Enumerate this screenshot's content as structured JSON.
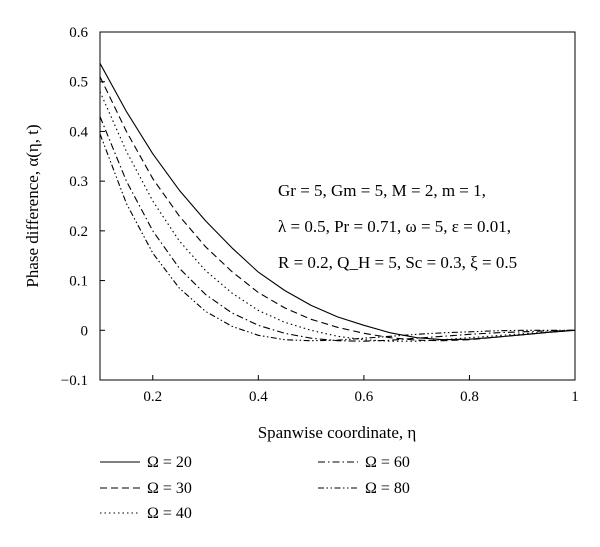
{
  "chart_data": {
    "type": "line",
    "title": "",
    "xlabel": "Spanwise coordinate, η",
    "ylabel": "Phase difference, α(η, t)",
    "xlim": [
      0.1,
      1.0
    ],
    "ylim": [
      -0.1,
      0.6
    ],
    "xticks": [
      {
        "v": 0.2,
        "label": "0.2"
      },
      {
        "v": 0.4,
        "label": "0.4"
      },
      {
        "v": 0.6,
        "label": "0.6"
      },
      {
        "v": 0.8,
        "label": "0.8"
      },
      {
        "v": 1.0,
        "label": "1"
      }
    ],
    "yticks": [
      {
        "v": -0.1,
        "label": "−0.1"
      },
      {
        "v": 0.0,
        "label": "0"
      },
      {
        "v": 0.1,
        "label": "0.1"
      },
      {
        "v": 0.2,
        "label": "0.2"
      },
      {
        "v": 0.3,
        "label": "0.3"
      },
      {
        "v": 0.4,
        "label": "0.4"
      },
      {
        "v": 0.5,
        "label": "0.5"
      },
      {
        "v": 0.6,
        "label": "0.6"
      }
    ],
    "grid": false,
    "legend_position": "bottom",
    "annotation_lines": [
      "Gr = 5, Gm = 5, M = 2, m = 1,",
      "λ = 0.5, Pr = 0.71, ω = 5, ε = 0.01,",
      "R = 0.2, Q_H = 5, Sc = 0.3, ξ = 0.5"
    ],
    "series": [
      {
        "name": "Ω = 20",
        "dash": "solid",
        "x": [
          0.1,
          0.15,
          0.2,
          0.25,
          0.3,
          0.35,
          0.4,
          0.45,
          0.5,
          0.55,
          0.6,
          0.65,
          0.7,
          0.75,
          0.8,
          0.85,
          0.9,
          0.95,
          1.0
        ],
        "y": [
          0.537,
          0.44,
          0.355,
          0.282,
          0.22,
          0.166,
          0.117,
          0.08,
          0.05,
          0.027,
          0.01,
          -0.005,
          -0.015,
          -0.019,
          -0.018,
          -0.014,
          -0.009,
          -0.004,
          0.0
        ]
      },
      {
        "name": "Ω = 30",
        "dash": "dash",
        "x": [
          0.1,
          0.15,
          0.2,
          0.25,
          0.3,
          0.35,
          0.4,
          0.45,
          0.5,
          0.55,
          0.6,
          0.65,
          0.7,
          0.75,
          0.8,
          0.85,
          0.9,
          0.95,
          1.0
        ],
        "y": [
          0.51,
          0.4,
          0.305,
          0.23,
          0.168,
          0.118,
          0.076,
          0.045,
          0.022,
          0.006,
          -0.006,
          -0.015,
          -0.02,
          -0.021,
          -0.019,
          -0.014,
          -0.009,
          -0.004,
          0.0
        ]
      },
      {
        "name": "Ω = 40",
        "dash": "dot",
        "x": [
          0.1,
          0.15,
          0.2,
          0.25,
          0.3,
          0.35,
          0.4,
          0.45,
          0.5,
          0.55,
          0.6,
          0.65,
          0.7,
          0.75,
          0.8,
          0.85,
          0.9,
          0.95,
          1.0
        ],
        "y": [
          0.48,
          0.36,
          0.26,
          0.18,
          0.12,
          0.075,
          0.04,
          0.016,
          0.0,
          -0.012,
          -0.019,
          -0.022,
          -0.022,
          -0.019,
          -0.015,
          -0.011,
          -0.007,
          -0.003,
          0.0
        ]
      },
      {
        "name": "Ω = 60",
        "dash": "dashdot",
        "x": [
          0.1,
          0.15,
          0.2,
          0.25,
          0.3,
          0.35,
          0.4,
          0.45,
          0.5,
          0.55,
          0.6,
          0.65,
          0.7,
          0.75,
          0.8,
          0.85,
          0.9,
          0.95,
          1.0
        ],
        "y": [
          0.43,
          0.3,
          0.2,
          0.125,
          0.072,
          0.035,
          0.01,
          -0.006,
          -0.016,
          -0.021,
          -0.022,
          -0.02,
          -0.016,
          -0.012,
          -0.008,
          -0.005,
          -0.003,
          -0.001,
          0.0
        ]
      },
      {
        "name": "Ω = 80",
        "dash": "dashdotdot",
        "x": [
          0.1,
          0.15,
          0.2,
          0.25,
          0.3,
          0.35,
          0.4,
          0.45,
          0.5,
          0.55,
          0.6,
          0.65,
          0.7,
          0.75,
          0.8,
          0.85,
          0.9,
          0.95,
          1.0
        ],
        "y": [
          0.395,
          0.255,
          0.155,
          0.085,
          0.038,
          0.008,
          -0.01,
          -0.019,
          -0.021,
          -0.02,
          -0.016,
          -0.012,
          -0.008,
          -0.005,
          -0.003,
          -0.001,
          0.0,
          0.0,
          0.0
        ]
      }
    ]
  }
}
